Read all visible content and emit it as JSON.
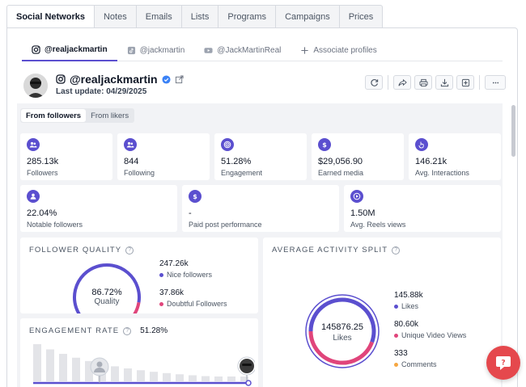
{
  "top_tabs": [
    {
      "label": "Social Networks",
      "active": true
    },
    {
      "label": "Notes"
    },
    {
      "label": "Emails"
    },
    {
      "label": "Lists"
    },
    {
      "label": "Programs"
    },
    {
      "label": "Campaigns"
    },
    {
      "label": "Prices"
    }
  ],
  "profile_tabs": [
    {
      "label": "@realjackmartin",
      "icon": "instagram-icon",
      "active": true
    },
    {
      "label": "@jackmartin",
      "icon": "tiktok-icon"
    },
    {
      "label": "@JackMartinReal",
      "icon": "youtube-icon"
    },
    {
      "label": "Associate profiles",
      "icon": "plus-icon"
    }
  ],
  "profile": {
    "handle": "@realjackmartin",
    "last_update": "Last update: 04/29/2025",
    "verified_icon": "verified-badge-icon",
    "external_icon": "external-link-icon"
  },
  "actions": [
    "refresh-icon",
    "share-icon",
    "print-icon",
    "download-icon",
    "add-to-list-icon",
    "more-icon"
  ],
  "source_tabs": [
    {
      "label": "From followers",
      "active": true
    },
    {
      "label": "From likers"
    }
  ],
  "stats_row1": [
    {
      "value": "285.13k",
      "label": "Followers",
      "icon": "followers-icon"
    },
    {
      "value": "844",
      "label": "Following",
      "icon": "following-icon"
    },
    {
      "value": "51.28%",
      "label": "Engagement",
      "icon": "target-icon"
    },
    {
      "value": "$29,056.90",
      "label": "Earned media",
      "icon": "dollar-icon"
    },
    {
      "value": "146.21k",
      "label": "Avg. Interactions",
      "icon": "hand-pointer-icon"
    }
  ],
  "stats_row2": [
    {
      "value": "22.04%",
      "label": "Notable followers",
      "icon": "notable-followers-icon"
    },
    {
      "value": "-",
      "label": "Paid post performance",
      "icon": "dollar-icon"
    },
    {
      "value": "1.50M",
      "label": "Avg. Reels views",
      "icon": "play-icon"
    }
  ],
  "follower_quality": {
    "title": "FOLLOWER QUALITY",
    "value": "86.72%",
    "center_label": "Quality",
    "quality_fraction": 0.8672,
    "nice_value": "247.26k",
    "nice_label": "Nice followers",
    "doubtful_value": "37.86k",
    "doubtful_label": "Doubtful Followers",
    "colors": {
      "nice": "#5b4fcf",
      "doubtful": "#e0457b"
    }
  },
  "engagement_rate": {
    "title": "ENGAGEMENT RATE",
    "value": "51.28%"
  },
  "activity_split": {
    "title": "AVERAGE ACTIVITY SPLIT",
    "center_value": "145876.25",
    "center_label": "Likes",
    "items": [
      {
        "value": "145.88k",
        "label": "Likes",
        "color": "#5b4fcf"
      },
      {
        "value": "80.60k",
        "label": "Unique Video Views",
        "color": "#e0457b"
      },
      {
        "value": "333",
        "label": "Comments",
        "color": "#f5a742"
      }
    ]
  },
  "colors": {
    "accent": "#5b4fcf",
    "pink": "#e0457b",
    "chat": "#e5484d"
  }
}
